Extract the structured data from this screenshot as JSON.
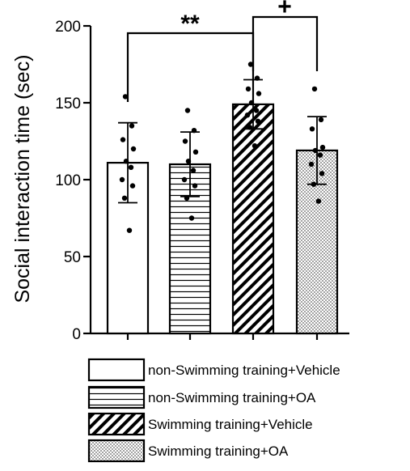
{
  "chart_data": {
    "type": "bar",
    "title": "",
    "xlabel": "",
    "ylabel": "Social interaction time (sec)",
    "ylim": [
      0,
      200
    ],
    "yticks": [
      0,
      50,
      100,
      150,
      200
    ],
    "grid": false,
    "legend_position": "bottom",
    "series": [
      {
        "name": "non-Swimming training+Vehicle",
        "pattern": "solid-white",
        "mean": 111,
        "sd": 26,
        "points": [
          154,
          135,
          126,
          120,
          112,
          108,
          100,
          96,
          88,
          67
        ]
      },
      {
        "name": "non-Swimming training+OA",
        "pattern": "horizontal-lines",
        "mean": 110,
        "sd": 21,
        "points": [
          145,
          132,
          125,
          118,
          112,
          106,
          100,
          96,
          88,
          75
        ]
      },
      {
        "name": "Swimming training+Vehicle",
        "pattern": "diagonal-hatch",
        "mean": 149,
        "sd": 16,
        "points": [
          175,
          166,
          159,
          156,
          150,
          145,
          142,
          138,
          134,
          122
        ]
      },
      {
        "name": "Swimming training+OA",
        "pattern": "dots",
        "mean": 119,
        "sd": 22,
        "points": [
          159,
          139,
          133,
          121,
          119,
          116,
          110,
          104,
          97,
          86
        ]
      }
    ],
    "annotations": [
      {
        "text": "**",
        "from": 0,
        "to": 2
      },
      {
        "text": "+",
        "from": 2,
        "to": 3
      }
    ],
    "colors": {
      "bar_outline": "#000000",
      "bar_fill": "#ffffff",
      "points": "#000000"
    }
  }
}
